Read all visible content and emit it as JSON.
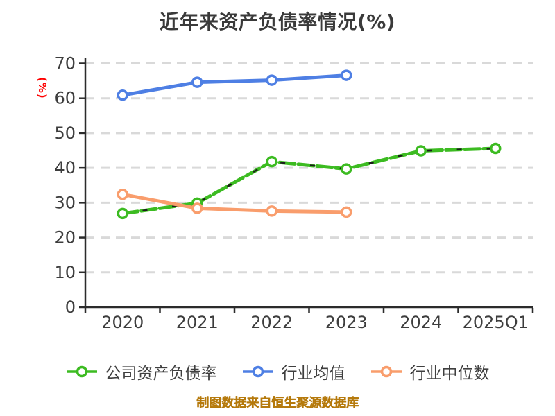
{
  "footer": "制图数据来自恒生聚源数据库",
  "legend": {
    "items": [
      {
        "label": "公司资产负债率",
        "color": "#3cbb21"
      },
      {
        "label": "行业均值",
        "color": "#4e7fe4"
      },
      {
        "label": "行业中位数",
        "color": "#f99d6c"
      }
    ]
  },
  "chart_data": {
    "type": "line",
    "title": "近年来资产负债率情况(%)",
    "ylabel": "(%)",
    "xlabel": "",
    "categories": [
      "2020",
      "2021",
      "2022",
      "2023",
      "2024",
      "2025Q1"
    ],
    "series": [
      {
        "name": "公司资产负债率",
        "color": "#3cbb21",
        "style": "dashed",
        "values": [
          26.9,
          29.9,
          41.8,
          39.7,
          44.9,
          45.6
        ]
      },
      {
        "name": "行业均值",
        "color": "#4e7fe4",
        "style": "solid",
        "values": [
          60.9,
          64.6,
          65.2,
          66.6,
          null,
          null
        ]
      },
      {
        "name": "行业中位数",
        "color": "#f99d6c",
        "style": "solid",
        "values": [
          32.4,
          28.4,
          27.6,
          27.3,
          null,
          null
        ]
      }
    ],
    "ylim": [
      0,
      70
    ],
    "yticks": [
      0,
      10,
      20,
      30,
      40,
      50,
      60,
      70
    ],
    "grid": "horizontal dashed",
    "legend_position": "bottom",
    "colors": {
      "grid": "#d9d9d9",
      "axis": "#2b2b2b",
      "tick_label": "#3d3d3d",
      "title": "#3a3a3a",
      "ylabel": "#ff0000",
      "footer": "#b5790b",
      "marker_fill": "#ffffff"
    }
  }
}
